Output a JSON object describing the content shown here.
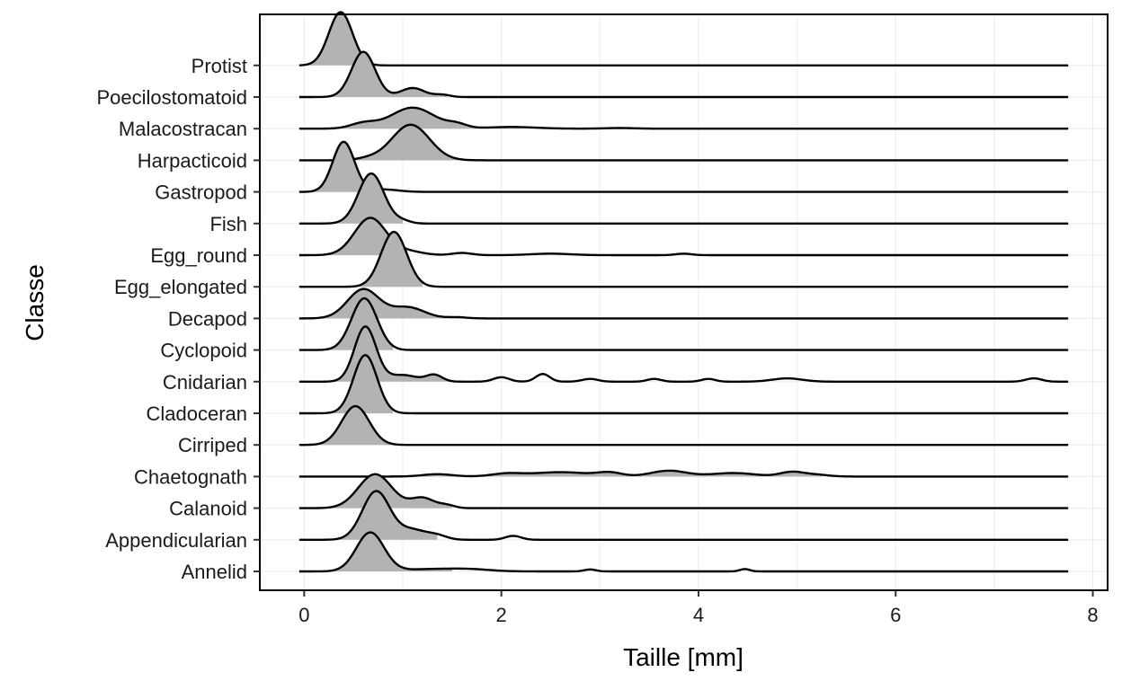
{
  "chart_data": {
    "type": "area",
    "subtype": "ridgeline",
    "xlabel": "Taille  [mm]",
    "ylabel": "Classe",
    "xlim": [
      -0.45,
      8.15
    ],
    "xticks": [
      0,
      2,
      4,
      6,
      8
    ],
    "grid": true,
    "legend": "none",
    "fill_color": "#b3b3b3",
    "line_color": "#000000",
    "x_range": [
      -0.05,
      7.75
    ],
    "categories": [
      "Annelid",
      "Appendicularian",
      "Calanoid",
      "Chaetognath",
      "Cirriped",
      "Cladoceran",
      "Cnidarian",
      "Cyclopoid",
      "Decapod",
      "Egg_elongated",
      "Egg_round",
      "Fish",
      "Gastropod",
      "Harpacticoid",
      "Malacostracan",
      "Poecilostomatoid",
      "Protist"
    ],
    "series": [
      {
        "name": "Annelid",
        "peak_height": 1.2,
        "fill_to": 1.5,
        "peaks": [
          [
            0.67,
            0.14,
            1.0
          ],
          [
            1.3,
            0.3,
            0.06
          ],
          [
            1.7,
            0.2,
            0.04
          ],
          [
            2.9,
            0.06,
            0.05
          ],
          [
            4.47,
            0.05,
            0.06
          ]
        ]
      },
      {
        "name": "Appendicularian",
        "peak_height": 1.5,
        "fill_to": 1.35,
        "peaks": [
          [
            0.73,
            0.14,
            1.0
          ],
          [
            1.1,
            0.14,
            0.2
          ],
          [
            1.35,
            0.1,
            0.08
          ],
          [
            2.12,
            0.08,
            0.08
          ]
        ]
      },
      {
        "name": "Calanoid",
        "peak_height": 1.05,
        "fill_to": 1.5,
        "peaks": [
          [
            0.72,
            0.17,
            1.0
          ],
          [
            1.2,
            0.12,
            0.3
          ],
          [
            1.45,
            0.08,
            0.08
          ]
        ]
      },
      {
        "name": "Chaetognath",
        "peak_height": 0.18,
        "fill_to": 5.25,
        "peaks": [
          [
            1.35,
            0.15,
            0.4
          ],
          [
            2.05,
            0.15,
            0.45
          ],
          [
            2.6,
            0.3,
            0.75
          ],
          [
            3.1,
            0.12,
            0.6
          ],
          [
            3.7,
            0.18,
            1.0
          ],
          [
            4.35,
            0.22,
            0.6
          ],
          [
            4.95,
            0.12,
            0.8
          ],
          [
            5.2,
            0.12,
            0.3
          ]
        ]
      },
      {
        "name": "Cirriped",
        "peak_height": 1.2,
        "fill_to": 0.95,
        "peaks": [
          [
            0.52,
            0.14,
            1.0
          ]
        ]
      },
      {
        "name": "Cladoceran",
        "peak_height": 1.8,
        "fill_to": 0.9,
        "peaks": [
          [
            0.62,
            0.12,
            1.0
          ]
        ]
      },
      {
        "name": "Cnidarian",
        "peak_height": 1.7,
        "fill_to": 1.5,
        "peaks": [
          [
            0.62,
            0.11,
            1.0
          ],
          [
            1.0,
            0.15,
            0.12
          ],
          [
            1.32,
            0.08,
            0.12
          ],
          [
            2.0,
            0.08,
            0.08
          ],
          [
            2.42,
            0.07,
            0.14
          ],
          [
            2.9,
            0.08,
            0.05
          ],
          [
            3.55,
            0.07,
            0.05
          ],
          [
            4.1,
            0.07,
            0.05
          ],
          [
            4.9,
            0.15,
            0.06
          ],
          [
            7.4,
            0.08,
            0.06
          ]
        ]
      },
      {
        "name": "Cyclopoid",
        "peak_height": 1.6,
        "fill_to": 0.9,
        "peaks": [
          [
            0.61,
            0.13,
            1.0
          ]
        ]
      },
      {
        "name": "Decapod",
        "peak_height": 0.9,
        "fill_to": 1.6,
        "peaks": [
          [
            0.6,
            0.16,
            1.0
          ],
          [
            1.05,
            0.17,
            0.38
          ],
          [
            1.55,
            0.1,
            0.04
          ]
        ]
      },
      {
        "name": "Egg_elongated",
        "peak_height": 1.7,
        "fill_to": 1.2,
        "peaks": [
          [
            0.91,
            0.13,
            1.0
          ]
        ]
      },
      {
        "name": "Egg_round",
        "peak_height": 1.15,
        "fill_to": 0.95,
        "peaks": [
          [
            0.67,
            0.16,
            1.0
          ],
          [
            1.05,
            0.15,
            0.1
          ],
          [
            1.6,
            0.1,
            0.06
          ],
          [
            2.5,
            0.2,
            0.04
          ],
          [
            3.85,
            0.08,
            0.04
          ]
        ]
      },
      {
        "name": "Fish",
        "peak_height": 1.55,
        "fill_to": 1.0,
        "peaks": [
          [
            0.68,
            0.13,
            1.0
          ],
          [
            1.0,
            0.08,
            0.05
          ]
        ]
      },
      {
        "name": "Gastropod",
        "peak_height": 1.55,
        "fill_to": 0.7,
        "peaks": [
          [
            0.4,
            0.11,
            1.0
          ],
          [
            0.8,
            0.15,
            0.05
          ]
        ]
      },
      {
        "name": "Harpacticoid",
        "peak_height": 1.1,
        "fill_to": 1.55,
        "peaks": [
          [
            1.08,
            0.19,
            1.0
          ],
          [
            0.65,
            0.12,
            0.05
          ]
        ]
      },
      {
        "name": "Malacostracan",
        "peak_height": 0.65,
        "fill_to": 2.2,
        "peaks": [
          [
            1.1,
            0.22,
            1.0
          ],
          [
            0.6,
            0.13,
            0.25
          ],
          [
            1.55,
            0.1,
            0.18
          ],
          [
            2.1,
            0.25,
            0.08
          ],
          [
            3.2,
            0.15,
            0.03
          ]
        ]
      },
      {
        "name": "Poecilostomatoid",
        "peak_height": 1.4,
        "fill_to": 1.45,
        "peaks": [
          [
            0.6,
            0.12,
            1.0
          ],
          [
            1.1,
            0.12,
            0.2
          ],
          [
            1.4,
            0.08,
            0.05
          ]
        ]
      },
      {
        "name": "Protist",
        "peak_height": 1.65,
        "fill_to": 0.7,
        "peaks": [
          [
            0.37,
            0.12,
            1.0
          ]
        ]
      }
    ]
  }
}
